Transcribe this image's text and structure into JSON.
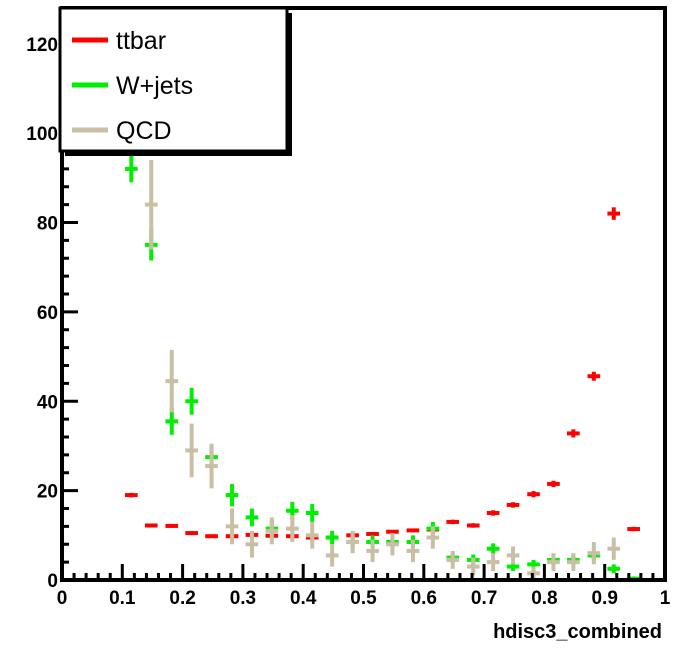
{
  "chart_data": {
    "type": "scatter",
    "title": "",
    "xlabel": "hdisc3_combined",
    "ylabel": "",
    "xlim": [
      0,
      1
    ],
    "ylim": [
      0,
      128
    ],
    "grid": false,
    "legend_position": "top-left",
    "x_ticks": [
      "0",
      "0.1",
      "0.2",
      "0.3",
      "0.4",
      "0.5",
      "0.6",
      "0.7",
      "0.8",
      "0.9",
      "1"
    ],
    "y_ticks": [
      "0",
      "20",
      "40",
      "60",
      "80",
      "100",
      "120"
    ],
    "series": [
      {
        "name": "ttbar",
        "color": "#ff0000",
        "points": [
          {
            "x": 0.115,
            "y": 19,
            "err": 0.5
          },
          {
            "x": 0.148,
            "y": 12.2,
            "err": 0.4
          },
          {
            "x": 0.182,
            "y": 12.1,
            "err": 0.4
          },
          {
            "x": 0.215,
            "y": 10.5,
            "err": 0.4
          },
          {
            "x": 0.248,
            "y": 9.8,
            "err": 0.4
          },
          {
            "x": 0.282,
            "y": 9.8,
            "err": 0.4
          },
          {
            "x": 0.315,
            "y": 10.1,
            "err": 0.4
          },
          {
            "x": 0.348,
            "y": 9.9,
            "err": 0.4
          },
          {
            "x": 0.382,
            "y": 9.8,
            "err": 0.4
          },
          {
            "x": 0.415,
            "y": 9.5,
            "err": 0.4
          },
          {
            "x": 0.448,
            "y": 9.5,
            "err": 0.4
          },
          {
            "x": 0.482,
            "y": 10.0,
            "err": 0.4
          },
          {
            "x": 0.515,
            "y": 10.3,
            "err": 0.4
          },
          {
            "x": 0.548,
            "y": 10.8,
            "err": 0.4
          },
          {
            "x": 0.582,
            "y": 11.1,
            "err": 0.4
          },
          {
            "x": 0.615,
            "y": 11.3,
            "err": 0.4
          },
          {
            "x": 0.648,
            "y": 13.0,
            "err": 0.5
          },
          {
            "x": 0.682,
            "y": 12.2,
            "err": 0.5
          },
          {
            "x": 0.715,
            "y": 15.0,
            "err": 0.6
          },
          {
            "x": 0.748,
            "y": 16.8,
            "err": 0.6
          },
          {
            "x": 0.782,
            "y": 19.2,
            "err": 0.7
          },
          {
            "x": 0.815,
            "y": 21.5,
            "err": 0.7
          },
          {
            "x": 0.848,
            "y": 32.8,
            "err": 0.9
          },
          {
            "x": 0.882,
            "y": 45.6,
            "err": 1.0
          },
          {
            "x": 0.915,
            "y": 82.0,
            "err": 1.4
          },
          {
            "x": 0.948,
            "y": 11.4,
            "err": 0.5
          }
        ]
      },
      {
        "name": "W+jets",
        "color": "#00ee00",
        "points": [
          {
            "x": 0.115,
            "y": 92,
            "err": 3.0
          },
          {
            "x": 0.148,
            "y": 75,
            "err": 3.5
          },
          {
            "x": 0.182,
            "y": 35.5,
            "err": 3.0
          },
          {
            "x": 0.215,
            "y": 40.0,
            "err": 3.0
          },
          {
            "x": 0.248,
            "y": 27.5,
            "err": 2.5
          },
          {
            "x": 0.282,
            "y": 19.0,
            "err": 2.5
          },
          {
            "x": 0.315,
            "y": 14.0,
            "err": 2.0
          },
          {
            "x": 0.348,
            "y": 11.5,
            "err": 2.0
          },
          {
            "x": 0.382,
            "y": 15.5,
            "err": 2.0
          },
          {
            "x": 0.415,
            "y": 15.0,
            "err": 2.0
          },
          {
            "x": 0.448,
            "y": 9.5,
            "err": 1.5
          },
          {
            "x": 0.482,
            "y": 8.5,
            "err": 1.5
          },
          {
            "x": 0.515,
            "y": 8.5,
            "err": 1.5
          },
          {
            "x": 0.548,
            "y": 8.5,
            "err": 1.5
          },
          {
            "x": 0.582,
            "y": 8.5,
            "err": 1.5
          },
          {
            "x": 0.615,
            "y": 11.5,
            "err": 1.5
          },
          {
            "x": 0.648,
            "y": 5.0,
            "err": 1.2
          },
          {
            "x": 0.682,
            "y": 4.5,
            "err": 1.2
          },
          {
            "x": 0.715,
            "y": 7.0,
            "err": 1.2
          },
          {
            "x": 0.748,
            "y": 3.0,
            "err": 1.0
          },
          {
            "x": 0.782,
            "y": 3.5,
            "err": 1.0
          },
          {
            "x": 0.815,
            "y": 4.5,
            "err": 1.0
          },
          {
            "x": 0.848,
            "y": 4.5,
            "err": 1.0
          },
          {
            "x": 0.882,
            "y": 5.5,
            "err": 1.0
          },
          {
            "x": 0.915,
            "y": 2.5,
            "err": 1.0
          },
          {
            "x": 0.948,
            "y": 0.3,
            "err": 0.5
          }
        ]
      },
      {
        "name": "QCD",
        "color": "#c8bfa5",
        "points": [
          {
            "x": 0.148,
            "y": 84,
            "err": 10
          },
          {
            "x": 0.182,
            "y": 44.5,
            "err": 7
          },
          {
            "x": 0.215,
            "y": 29.0,
            "err": 6
          },
          {
            "x": 0.248,
            "y": 25.5,
            "err": 5
          },
          {
            "x": 0.282,
            "y": 12.0,
            "err": 4
          },
          {
            "x": 0.315,
            "y": 8.0,
            "err": 3
          },
          {
            "x": 0.348,
            "y": 11.0,
            "err": 3
          },
          {
            "x": 0.382,
            "y": 11.5,
            "err": 3
          },
          {
            "x": 0.415,
            "y": 10.0,
            "err": 3
          },
          {
            "x": 0.448,
            "y": 5.5,
            "err": 2.5
          },
          {
            "x": 0.482,
            "y": 8.5,
            "err": 2.5
          },
          {
            "x": 0.515,
            "y": 6.5,
            "err": 2.5
          },
          {
            "x": 0.548,
            "y": 8.0,
            "err": 2.5
          },
          {
            "x": 0.582,
            "y": 6.5,
            "err": 2.5
          },
          {
            "x": 0.615,
            "y": 9.5,
            "err": 2.5
          },
          {
            "x": 0.648,
            "y": 4.5,
            "err": 2.0
          },
          {
            "x": 0.682,
            "y": 3.0,
            "err": 2.0
          },
          {
            "x": 0.715,
            "y": 4.0,
            "err": 2.0
          },
          {
            "x": 0.748,
            "y": 5.5,
            "err": 2.0
          },
          {
            "x": 0.782,
            "y": 1.5,
            "err": 1.5
          },
          {
            "x": 0.815,
            "y": 4.0,
            "err": 2.0
          },
          {
            "x": 0.848,
            "y": 4.0,
            "err": 2.0
          },
          {
            "x": 0.882,
            "y": 6.0,
            "err": 2.5
          },
          {
            "x": 0.915,
            "y": 7.0,
            "err": 2.5
          }
        ]
      }
    ]
  }
}
